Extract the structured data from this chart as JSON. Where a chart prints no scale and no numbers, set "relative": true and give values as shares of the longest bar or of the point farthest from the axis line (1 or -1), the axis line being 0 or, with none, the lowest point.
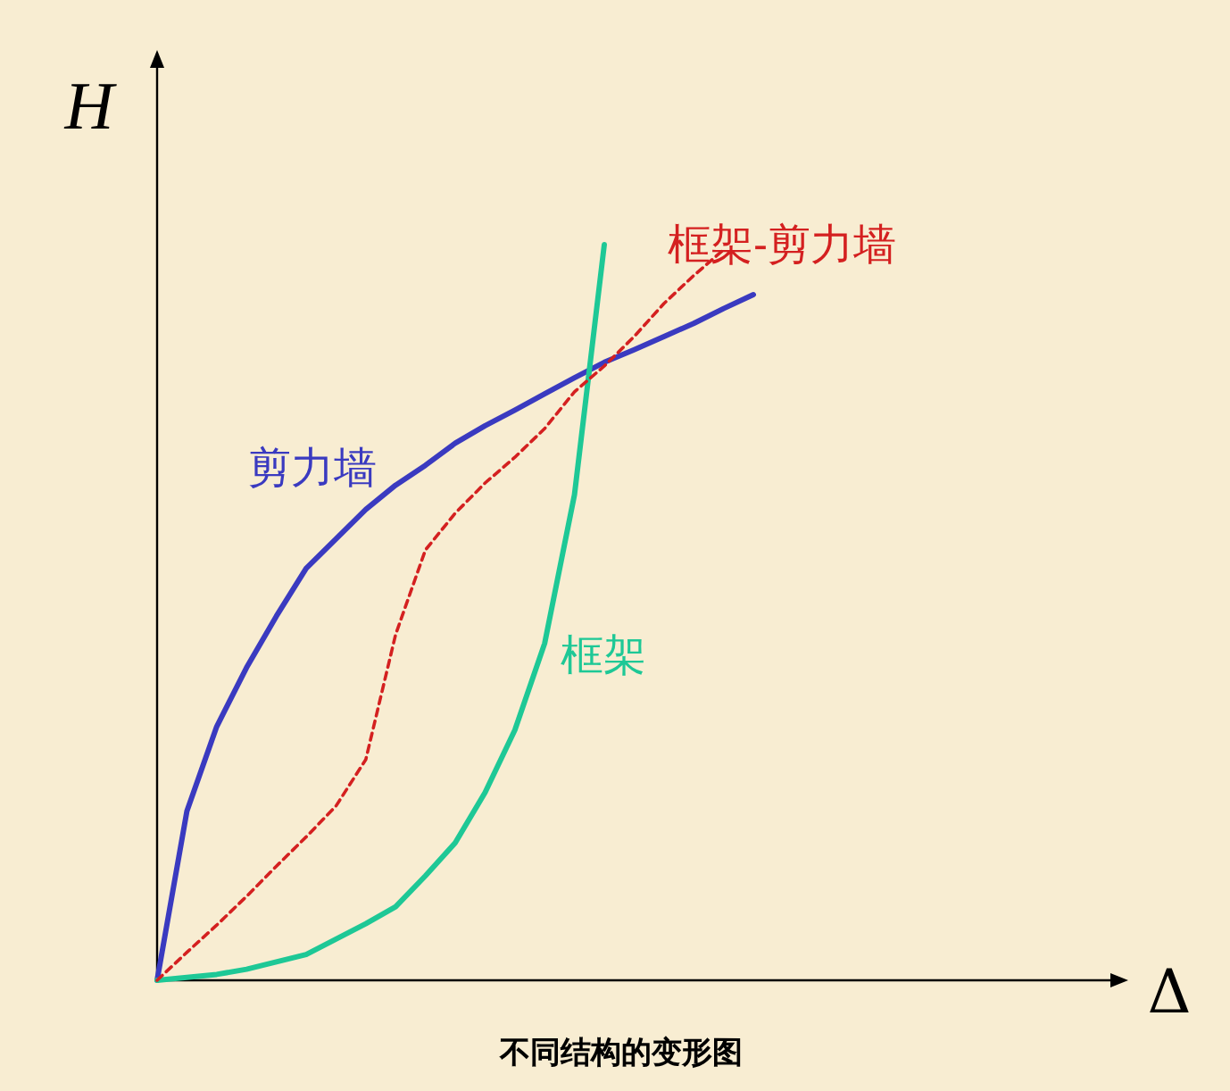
{
  "chart_data": {
    "type": "line",
    "relative": true,
    "title": "不同结构的变形图",
    "annotations": [
      "Δ"
    ],
    "ylabel": "H",
    "legend": false,
    "grid": false,
    "marker": "none",
    "categories": [
      null,
      null,
      null,
      null,
      null,
      null,
      null,
      null,
      null,
      null,
      null,
      null,
      null,
      null,
      null,
      null,
      null,
      null,
      null,
      null,
      null
    ],
    "series": [
      {
        "name": "剪力墙",
        "color": "#3a3ac0",
        "line_style": "solid",
        "values": [
          0,
          0.23,
          0.345,
          0.425,
          0.495,
          0.56,
          0.6,
          0.64,
          0.673,
          0.7,
          0.73,
          0.754,
          0.775,
          0.797,
          0.819,
          0.84,
          0.857,
          0.875,
          0.893,
          0.913,
          0.932
        ]
      },
      {
        "name": "框架",
        "color": "#1ec896",
        "line_style": "solid",
        "values": [
          0,
          0.004,
          0.008,
          0.015,
          0.025,
          0.035,
          0.056,
          0.077,
          0.1,
          0.142,
          0.187,
          0.255,
          0.34,
          0.458,
          0.66,
          1,
          null,
          null,
          null,
          null,
          null
        ]
      },
      {
        "name": "框架-剪力墙",
        "color": "#d42020",
        "line_style": "dashed",
        "values": [
          0,
          0.038,
          0.075,
          0.114,
          0.155,
          0.195,
          0.237,
          0.3,
          0.47,
          0.585,
          0.635,
          0.676,
          0.711,
          0.75,
          0.8,
          0.835,
          0.875,
          0.92,
          0.958,
          0.993,
          null
        ]
      }
    ]
  }
}
